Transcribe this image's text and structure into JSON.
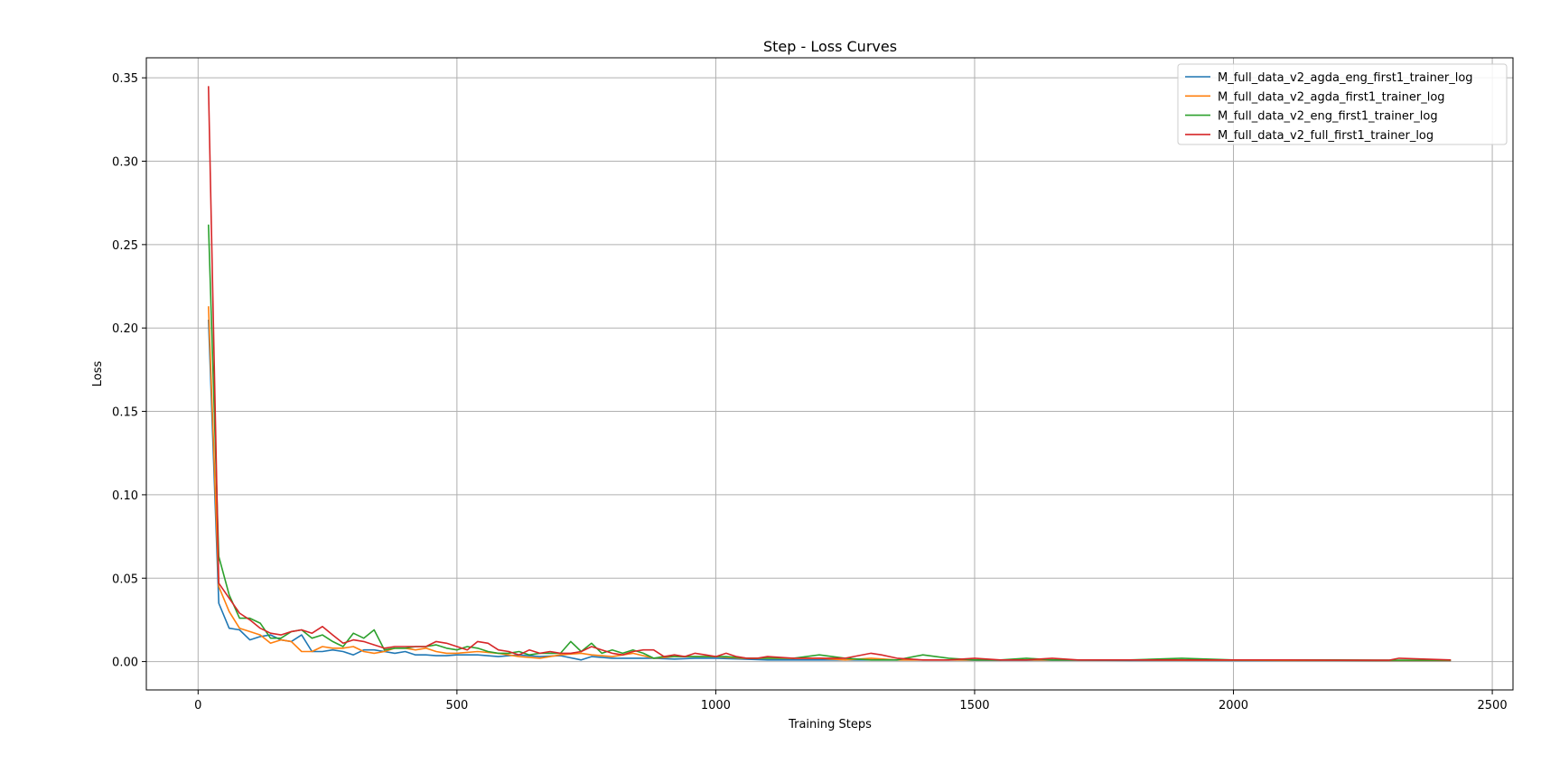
{
  "chart_data": {
    "type": "line",
    "title": "Step - Loss Curves",
    "xlabel": "Training Steps",
    "ylabel": "Loss",
    "xlim": [
      -100,
      2540
    ],
    "ylim": [
      -0.017,
      0.362
    ],
    "xticks": [
      0,
      500,
      1000,
      1500,
      2000,
      2500
    ],
    "yticks": [
      0.0,
      0.05,
      0.1,
      0.15,
      0.2,
      0.25,
      0.3,
      0.35
    ],
    "ytick_labels": [
      "0.00",
      "0.05",
      "0.10",
      "0.15",
      "0.20",
      "0.25",
      "0.30",
      "0.35"
    ],
    "xtick_labels": [
      "0",
      "500",
      "1000",
      "1500",
      "2000",
      "2500"
    ],
    "grid": true,
    "legend_position": "top-right",
    "series": [
      {
        "name": "M_full_data_v2_agda_eng_first1_trainer_log",
        "color": "#1f77b4",
        "x": [
          20,
          40,
          60,
          80,
          100,
          120,
          140,
          160,
          180,
          200,
          220,
          240,
          260,
          280,
          300,
          320,
          340,
          360,
          380,
          400,
          420,
          440,
          460,
          480,
          500,
          540,
          580,
          620,
          660,
          700,
          740,
          760,
          800,
          840,
          880,
          920,
          960,
          1000,
          1050,
          1100,
          1150,
          1200,
          1250,
          1300,
          1350,
          1400,
          1450,
          1500,
          1600,
          1700,
          1800,
          1900,
          2000,
          2100,
          2200,
          2300,
          2420
        ],
        "y": [
          0.205,
          0.035,
          0.02,
          0.019,
          0.013,
          0.015,
          0.016,
          0.013,
          0.012,
          0.016,
          0.006,
          0.006,
          0.007,
          0.006,
          0.004,
          0.007,
          0.007,
          0.006,
          0.005,
          0.006,
          0.004,
          0.004,
          0.0035,
          0.0035,
          0.004,
          0.004,
          0.003,
          0.004,
          0.003,
          0.0035,
          0.001,
          0.003,
          0.002,
          0.002,
          0.002,
          0.0015,
          0.002,
          0.002,
          0.0015,
          0.001,
          0.001,
          0.001,
          0.001,
          0.001,
          0.001,
          0.001,
          0.001,
          0.0008,
          0.0008,
          0.0008,
          0.0007,
          0.0007,
          0.0006,
          0.0006,
          0.0006,
          0.0005,
          0.0005
        ]
      },
      {
        "name": "M_full_data_v2_agda_first1_trainer_log",
        "color": "#ff7f0e",
        "x": [
          20,
          40,
          60,
          80,
          100,
          120,
          140,
          160,
          180,
          200,
          220,
          240,
          260,
          280,
          300,
          320,
          340,
          360,
          380,
          400,
          420,
          440,
          460,
          480,
          500,
          540,
          580,
          620,
          660,
          700,
          740,
          760,
          800,
          840,
          880,
          920,
          960,
          1000,
          1050,
          1100,
          1150,
          1200,
          1250,
          1300,
          1350,
          1400,
          1450,
          1500,
          1600,
          1700,
          1800,
          1900,
          2000,
          2100,
          2200,
          2300,
          2420
        ],
        "y": [
          0.213,
          0.045,
          0.03,
          0.02,
          0.018,
          0.016,
          0.011,
          0.013,
          0.012,
          0.006,
          0.006,
          0.009,
          0.008,
          0.008,
          0.009,
          0.006,
          0.005,
          0.006,
          0.008,
          0.008,
          0.007,
          0.008,
          0.006,
          0.005,
          0.005,
          0.006,
          0.005,
          0.003,
          0.002,
          0.004,
          0.005,
          0.004,
          0.003,
          0.005,
          0.002,
          0.003,
          0.003,
          0.003,
          0.002,
          0.002,
          0.002,
          0.002,
          0.001,
          0.002,
          0.001,
          0.001,
          0.001,
          0.001,
          0.001,
          0.001,
          0.001,
          0.0008,
          0.0008,
          0.0007,
          0.0007,
          0.0006,
          0.0006
        ]
      },
      {
        "name": "M_full_data_v2_eng_first1_trainer_log",
        "color": "#2ca02c",
        "x": [
          20,
          40,
          60,
          80,
          100,
          120,
          140,
          160,
          180,
          200,
          220,
          240,
          260,
          280,
          300,
          320,
          340,
          360,
          380,
          400,
          420,
          440,
          460,
          480,
          500,
          520,
          540,
          560,
          580,
          600,
          620,
          640,
          660,
          680,
          700,
          720,
          740,
          760,
          780,
          800,
          820,
          840,
          860,
          880,
          900,
          940,
          980,
          1020,
          1060,
          1100,
          1150,
          1200,
          1250,
          1300,
          1350,
          1400,
          1450,
          1500,
          1550,
          1600,
          1650,
          1700,
          1800,
          1900,
          2000,
          2100,
          2200,
          2300,
          2420
        ],
        "y": [
          0.262,
          0.063,
          0.04,
          0.026,
          0.026,
          0.023,
          0.014,
          0.014,
          0.018,
          0.019,
          0.014,
          0.016,
          0.012,
          0.009,
          0.017,
          0.014,
          0.019,
          0.007,
          0.008,
          0.008,
          0.009,
          0.009,
          0.01,
          0.008,
          0.007,
          0.009,
          0.008,
          0.006,
          0.005,
          0.005,
          0.006,
          0.004,
          0.005,
          0.005,
          0.005,
          0.012,
          0.006,
          0.011,
          0.005,
          0.007,
          0.005,
          0.007,
          0.005,
          0.002,
          0.003,
          0.003,
          0.003,
          0.003,
          0.002,
          0.002,
          0.002,
          0.004,
          0.002,
          0.001,
          0.001,
          0.004,
          0.002,
          0.001,
          0.001,
          0.002,
          0.001,
          0.001,
          0.001,
          0.002,
          0.001,
          0.001,
          0.001,
          0.0008,
          0.0008
        ]
      },
      {
        "name": "M_full_data_v2_full_first1_trainer_log",
        "color": "#d62728",
        "x": [
          20,
          40,
          60,
          80,
          100,
          120,
          140,
          160,
          180,
          200,
          220,
          240,
          260,
          280,
          300,
          320,
          340,
          360,
          380,
          400,
          420,
          440,
          460,
          480,
          500,
          520,
          540,
          560,
          580,
          600,
          620,
          640,
          660,
          680,
          700,
          720,
          740,
          760,
          780,
          800,
          820,
          840,
          860,
          880,
          900,
          920,
          940,
          960,
          980,
          1000,
          1020,
          1040,
          1060,
          1080,
          1100,
          1150,
          1200,
          1250,
          1300,
          1320,
          1350,
          1400,
          1450,
          1500,
          1550,
          1600,
          1650,
          1700,
          1750,
          1800,
          1850,
          1900,
          1950,
          2000,
          2100,
          2200,
          2300,
          2320,
          2420
        ],
        "y": [
          0.345,
          0.047,
          0.038,
          0.029,
          0.025,
          0.02,
          0.017,
          0.016,
          0.018,
          0.019,
          0.017,
          0.021,
          0.016,
          0.011,
          0.013,
          0.012,
          0.01,
          0.008,
          0.009,
          0.009,
          0.009,
          0.009,
          0.012,
          0.011,
          0.009,
          0.007,
          0.012,
          0.011,
          0.007,
          0.006,
          0.004,
          0.007,
          0.005,
          0.006,
          0.005,
          0.005,
          0.006,
          0.009,
          0.007,
          0.005,
          0.004,
          0.006,
          0.007,
          0.007,
          0.003,
          0.004,
          0.003,
          0.005,
          0.004,
          0.003,
          0.005,
          0.003,
          0.002,
          0.002,
          0.003,
          0.002,
          0.002,
          0.002,
          0.005,
          0.004,
          0.002,
          0.001,
          0.001,
          0.002,
          0.001,
          0.001,
          0.002,
          0.001,
          0.001,
          0.001,
          0.001,
          0.001,
          0.001,
          0.001,
          0.001,
          0.0008,
          0.0008,
          0.002,
          0.001
        ]
      }
    ]
  }
}
